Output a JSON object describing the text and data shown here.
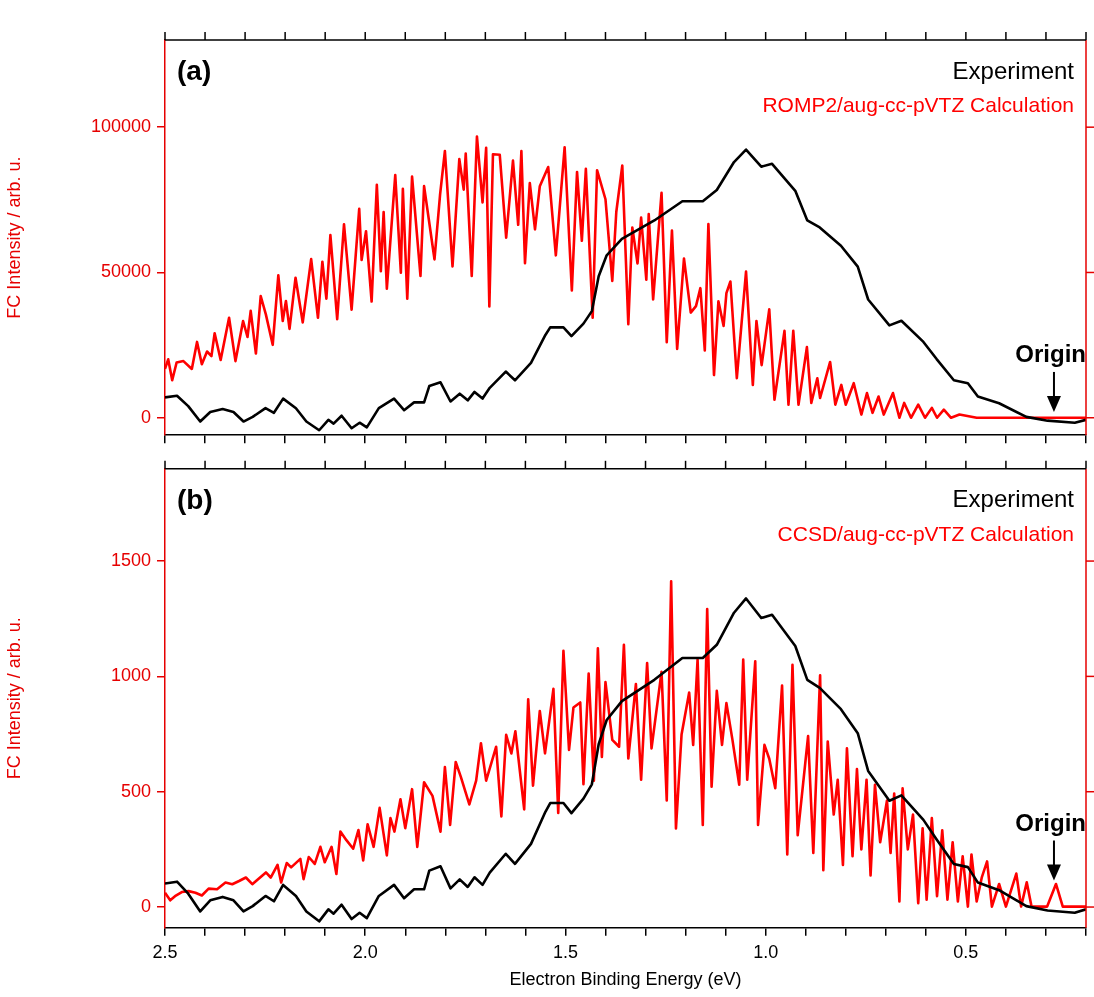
{
  "chart_data": [
    {
      "type": "line",
      "ylabel": "FC Intensity / arb. u.",
      "legend": "top right",
      "tick_labels": "y",
      "marker": "none",
      "line_style": "solid",
      "grid": false,
      "xlim": [
        2.5,
        0.2
      ],
      "ylim": [
        -6000,
        130000
      ],
      "xticks": [
        {
          "value": 2.5,
          "label": null
        },
        {
          "value": 2.4,
          "label": null
        },
        {
          "value": 2.3,
          "label": null
        },
        {
          "value": 2.2,
          "label": null
        },
        {
          "value": 2.1,
          "label": null
        },
        {
          "value": 2.0,
          "label": null
        },
        {
          "value": 1.9,
          "label": null
        },
        {
          "value": 1.8,
          "label": null
        },
        {
          "value": 1.7,
          "label": null
        },
        {
          "value": 1.6,
          "label": null
        },
        {
          "value": 1.5,
          "label": null
        },
        {
          "value": 1.4,
          "label": null
        },
        {
          "value": 1.3,
          "label": null
        },
        {
          "value": 1.2,
          "label": null
        },
        {
          "value": 1.1,
          "label": null
        },
        {
          "value": 1.0,
          "label": null
        },
        {
          "value": 0.9,
          "label": null
        },
        {
          "value": 0.8,
          "label": null
        },
        {
          "value": 0.7,
          "label": null
        },
        {
          "value": 0.6,
          "label": null
        },
        {
          "value": 0.5,
          "label": null
        },
        {
          "value": 0.4,
          "label": null
        },
        {
          "value": 0.3,
          "label": null
        },
        {
          "value": 0.2,
          "label": null
        }
      ],
      "yticks": [
        0,
        50000,
        100000
      ],
      "annotations": [
        "(a)",
        {
          "text": "Origin",
          "x": 0.28,
          "y": 2000
        }
      ],
      "series": [
        {
          "name": "Experiment",
          "color": "#000000",
          "x": [
            2.5,
            2.47,
            2.442,
            2.412,
            2.387,
            2.356,
            2.329,
            2.304,
            2.281,
            2.249,
            2.228,
            2.205,
            2.173,
            2.147,
            2.115,
            2.092,
            2.079,
            2.059,
            2.034,
            2.014,
            1.996,
            1.966,
            1.928,
            1.903,
            1.878,
            1.853,
            1.84,
            1.812,
            1.787,
            1.764,
            1.744,
            1.727,
            1.707,
            1.689,
            1.649,
            1.626,
            1.586,
            1.55,
            1.538,
            1.505,
            1.485,
            1.455,
            1.434,
            1.417,
            1.397,
            1.359,
            1.278,
            1.208,
            1.157,
            1.122,
            1.079,
            1.049,
            1.011,
            0.984,
            0.926,
            0.896,
            0.865,
            0.812,
            0.77,
            0.744,
            0.691,
            0.661,
            0.606,
            0.573,
            0.53,
            0.495,
            0.47,
            0.417,
            0.349,
            0.296,
            0.228,
            0.2
          ],
          "values": [
            7000,
            7600,
            4000,
            -1300,
            2000,
            3000,
            2000,
            -1300,
            300,
            3300,
            1700,
            6600,
            3300,
            -1300,
            -4300,
            -700,
            -2000,
            700,
            -3600,
            -1700,
            -3300,
            3300,
            6600,
            2600,
            5300,
            5300,
            10900,
            12200,
            5600,
            8300,
            6000,
            8900,
            6600,
            10300,
            15900,
            12900,
            18900,
            28500,
            31100,
            31100,
            28100,
            32400,
            36700,
            48700,
            55900,
            61600,
            67900,
            74500,
            74500,
            78400,
            88000,
            92300,
            86400,
            87400,
            78100,
            67900,
            65500,
            59200,
            52000,
            40700,
            31800,
            33400,
            26100,
            20200,
            12900,
            11900,
            7300,
            5000,
            300,
            -1000,
            -1700,
            -700
          ]
        },
        {
          "name": "ROMP2/aug-cc-pVTZ Calculation",
          "color": "#ff0000",
          "x": [
            2.5,
            2.492,
            2.482,
            2.471,
            2.454,
            2.433,
            2.42,
            2.408,
            2.395,
            2.384,
            2.376,
            2.361,
            2.34,
            2.324,
            2.305,
            2.294,
            2.286,
            2.273,
            2.261,
            2.248,
            2.231,
            2.217,
            2.206,
            2.198,
            2.189,
            2.174,
            2.156,
            2.135,
            2.118,
            2.107,
            2.097,
            2.087,
            2.07,
            2.053,
            2.034,
            2.015,
            2.009,
            1.998,
            1.984,
            1.971,
            1.961,
            1.954,
            1.946,
            1.925,
            1.911,
            1.906,
            1.895,
            1.883,
            1.862,
            1.853,
            1.837,
            1.827,
            1.813,
            1.801,
            1.782,
            1.765,
            1.754,
            1.749,
            1.734,
            1.721,
            1.707,
            1.698,
            1.69,
            1.681,
            1.664,
            1.648,
            1.631,
            1.618,
            1.61,
            1.601,
            1.589,
            1.576,
            1.564,
            1.543,
            1.524,
            1.502,
            1.484,
            1.471,
            1.459,
            1.449,
            1.432,
            1.421,
            1.4,
            1.383,
            1.373,
            1.358,
            1.343,
            1.333,
            1.32,
            1.311,
            1.298,
            1.292,
            1.281,
            1.26,
            1.247,
            1.234,
            1.221,
            1.204,
            1.187,
            1.174,
            1.163,
            1.152,
            1.143,
            1.129,
            1.118,
            1.105,
            1.098,
            1.088,
            1.072,
            1.049,
            1.032,
            1.023,
            1.01,
            0.991,
            0.978,
            0.953,
            0.943,
            0.931,
            0.918,
            0.897,
            0.886,
            0.871,
            0.864,
            0.839,
            0.826,
            0.811,
            0.8,
            0.78,
            0.761,
            0.747,
            0.733,
            0.718,
            0.705,
            0.682,
            0.666,
            0.654,
            0.637,
            0.619,
            0.602,
            0.585,
            0.572,
            0.555,
            0.537,
            0.516,
            0.473,
            0.2
          ],
          "values": [
            16800,
            20100,
            12900,
            19000,
            19500,
            16800,
            26100,
            18400,
            22800,
            21200,
            29100,
            19900,
            34400,
            19500,
            33300,
            27800,
            36800,
            22100,
            41900,
            35500,
            25100,
            49000,
            33300,
            40200,
            30600,
            48200,
            32800,
            54600,
            34400,
            53700,
            41000,
            62900,
            33900,
            66600,
            37200,
            71900,
            54300,
            64200,
            40000,
            80200,
            50400,
            70800,
            44400,
            83500,
            49900,
            78800,
            41000,
            83000,
            48800,
            79700,
            64200,
            54500,
            76900,
            91800,
            52100,
            89000,
            78500,
            90900,
            48800,
            96800,
            74100,
            92900,
            38300,
            90700,
            90500,
            62000,
            88500,
            66400,
            91800,
            53200,
            80800,
            64800,
            79700,
            86300,
            55900,
            93100,
            43800,
            84600,
            60900,
            85700,
            34400,
            85200,
            75200,
            47100,
            70800,
            86800,
            32200,
            65500,
            53100,
            68900,
            47500,
            70100,
            40700,
            77400,
            26000,
            64400,
            23700,
            54800,
            36200,
            38400,
            44600,
            23200,
            66700,
            14700,
            40100,
            31600,
            42900,
            46900,
            13600,
            50300,
            11300,
            33300,
            18100,
            37300,
            6200,
            29900,
            4500,
            29900,
            4500,
            24300,
            5100,
            13600,
            6800,
            19200,
            4500,
            11300,
            4500,
            11900,
            1100,
            8500,
            1700,
            7300,
            1100,
            8500,
            0,
            5100,
            0,
            4500,
            0,
            3400,
            0,
            2800,
            0,
            1100,
            0,
            0
          ]
        }
      ]
    },
    {
      "type": "line",
      "xlabel": "Electron Binding Energy (eV)",
      "ylabel": "FC Intensity / arb. u.",
      "legend": "top right",
      "marker": "none",
      "line_style": "solid",
      "grid": false,
      "xlim": [
        2.5,
        0.2
      ],
      "ylim": [
        -90,
        1900
      ],
      "xticks": [
        2.5,
        {
          "value": 2.4,
          "label": null
        },
        {
          "value": 2.3,
          "label": null
        },
        {
          "value": 2.2,
          "label": null
        },
        {
          "value": 2.1,
          "label": null
        },
        {
          "value": 2.0,
          "label": "2.0"
        },
        {
          "value": 1.9,
          "label": null
        },
        {
          "value": 1.8,
          "label": null
        },
        {
          "value": 1.7,
          "label": null
        },
        {
          "value": 1.6,
          "label": null
        },
        1.5,
        {
          "value": 1.4,
          "label": null
        },
        {
          "value": 1.3,
          "label": null
        },
        {
          "value": 1.2,
          "label": null
        },
        {
          "value": 1.1,
          "label": null
        },
        {
          "value": 1.0,
          "label": "1.0"
        },
        {
          "value": 0.9,
          "label": null
        },
        {
          "value": 0.8,
          "label": null
        },
        {
          "value": 0.7,
          "label": null
        },
        {
          "value": 0.6,
          "label": null
        },
        0.5,
        {
          "value": 0.4,
          "label": null
        },
        {
          "value": 0.3,
          "label": null
        },
        {
          "value": 0.2,
          "label": null
        }
      ],
      "yticks": [
        0,
        500,
        1000,
        1500
      ],
      "annotations": [
        "(b)",
        {
          "text": "Origin",
          "x": 0.28,
          "y": 115
        }
      ],
      "series": [
        {
          "name": "Experiment",
          "color": "#000000",
          "x": [
            2.5,
            2.47,
            2.442,
            2.412,
            2.387,
            2.356,
            2.329,
            2.304,
            2.281,
            2.249,
            2.228,
            2.205,
            2.173,
            2.147,
            2.115,
            2.092,
            2.079,
            2.059,
            2.034,
            2.014,
            1.996,
            1.966,
            1.928,
            1.903,
            1.878,
            1.853,
            1.84,
            1.812,
            1.787,
            1.764,
            1.744,
            1.727,
            1.707,
            1.689,
            1.649,
            1.626,
            1.586,
            1.55,
            1.538,
            1.505,
            1.485,
            1.455,
            1.434,
            1.417,
            1.397,
            1.359,
            1.278,
            1.208,
            1.157,
            1.122,
            1.079,
            1.049,
            1.011,
            0.984,
            0.926,
            0.896,
            0.865,
            0.812,
            0.77,
            0.744,
            0.691,
            0.661,
            0.606,
            0.573,
            0.53,
            0.495,
            0.47,
            0.417,
            0.349,
            0.296,
            0.228,
            0.2
          ],
          "values": [
            102,
            110,
            58,
            -19,
            29,
            44,
            29,
            -19,
            4,
            48,
            25,
            96,
            48,
            -19,
            -62,
            -10,
            -29,
            10,
            -52,
            -25,
            -48,
            48,
            96,
            38,
            77,
            77,
            158,
            177,
            81,
            120,
            87,
            129,
            96,
            149,
            231,
            187,
            274,
            413,
            451,
            451,
            407,
            470,
            532,
            706,
            811,
            893,
            985,
            1080,
            1080,
            1137,
            1276,
            1338,
            1253,
            1267,
            1132,
            985,
            950,
            858,
            754,
            590,
            461,
            484,
            378,
            293,
            187,
            173,
            106,
            73,
            4,
            -15,
            -25,
            -10
          ]
        },
        {
          "name": "CCSD/aug-cc-pVTZ Calculation",
          "color": "#ff0000",
          "x": [
            2.5,
            2.487,
            2.475,
            2.458,
            2.441,
            2.424,
            2.408,
            2.391,
            2.37,
            2.349,
            2.332,
            2.315,
            2.298,
            2.282,
            2.248,
            2.236,
            2.219,
            2.21,
            2.196,
            2.185,
            2.162,
            2.154,
            2.141,
            2.126,
            2.112,
            2.101,
            2.084,
            2.072,
            2.062,
            2.047,
            2.03,
            2.017,
            2.005,
            1.994,
            1.979,
            1.964,
            1.946,
            1.937,
            1.927,
            1.912,
            1.9,
            1.883,
            1.87,
            1.853,
            1.832,
            1.812,
            1.801,
            1.788,
            1.774,
            1.761,
            1.74,
            1.723,
            1.711,
            1.698,
            1.673,
            1.66,
            1.648,
            1.635,
            1.625,
            1.603,
            1.593,
            1.581,
            1.564,
            1.551,
            1.53,
            1.518,
            1.505,
            1.491,
            1.48,
            1.463,
            1.455,
            1.442,
            1.429,
            1.419,
            1.409,
            1.4,
            1.383,
            1.366,
            1.354,
            1.343,
            1.324,
            1.311,
            1.296,
            1.285,
            1.26,
            1.247,
            1.236,
            1.224,
            1.21,
            1.191,
            1.181,
            1.17,
            1.157,
            1.146,
            1.135,
            1.122,
            1.109,
            1.098,
            1.083,
            1.066,
            1.056,
            1.046,
            1.026,
            1.019,
            1.003,
            0.991,
            0.976,
            0.959,
            0.946,
            0.933,
            0.92,
            0.894,
            0.881,
            0.864,
            0.856,
            0.845,
            0.83,
            0.82,
            0.807,
            0.797,
            0.783,
            0.772,
            0.761,
            0.748,
            0.738,
            0.727,
            0.714,
            0.697,
            0.688,
            0.679,
            0.666,
            0.658,
            0.645,
            0.632,
            0.619,
            0.608,
            0.598,
            0.585,
            0.572,
            0.559,
            0.546,
            0.533,
            0.52,
            0.508,
            0.495,
            0.486,
            0.473,
            0.46,
            0.447,
            0.435,
            0.417,
            0.4,
            0.374,
            0.362,
            0.348,
            0.336,
            0.297,
            0.275,
            0.258,
            0.2
          ],
          "values": [
            62,
            29,
            47,
            65,
            69,
            62,
            50,
            80,
            77,
            106,
            99,
            113,
            128,
            99,
            150,
            128,
            183,
            106,
            191,
            172,
            209,
            121,
            217,
            187,
            261,
            194,
            261,
            143,
            327,
            290,
            253,
            334,
            202,
            359,
            261,
            430,
            224,
            386,
            327,
            467,
            342,
            511,
            261,
            541,
            482,
            327,
            607,
            356,
            629,
            563,
            445,
            548,
            710,
            548,
            695,
            393,
            747,
            666,
            762,
            423,
            901,
            526,
            850,
            666,
            946,
            408,
            1111,
            681,
            865,
            887,
            533,
            1012,
            548,
            1122,
            651,
            975,
            725,
            695,
            1137,
            644,
            967,
            552,
            1058,
            688,
            1020,
            462,
            1412,
            341,
            748,
            930,
            703,
            1073,
            356,
            1292,
            522,
            937,
            703,
            884,
            726,
            530,
            1073,
            552,
            1065,
            356,
            703,
            643,
            515,
            960,
            228,
            1050,
            311,
            741,
            235,
            1005,
            160,
            718,
            401,
            552,
            183,
            688,
            220,
            598,
            250,
            552,
            137,
            530,
            281,
            462,
            235,
            492,
            24,
            515,
            250,
            401,
            17,
            341,
            32,
            386,
            47,
            333,
            32,
            281,
            24,
            220,
            2,
            228,
            24,
            130,
            198,
            2,
            100,
            2,
            145,
            2,
            107,
            2,
            2,
            100,
            2,
            2
          ]
        }
      ]
    }
  ]
}
